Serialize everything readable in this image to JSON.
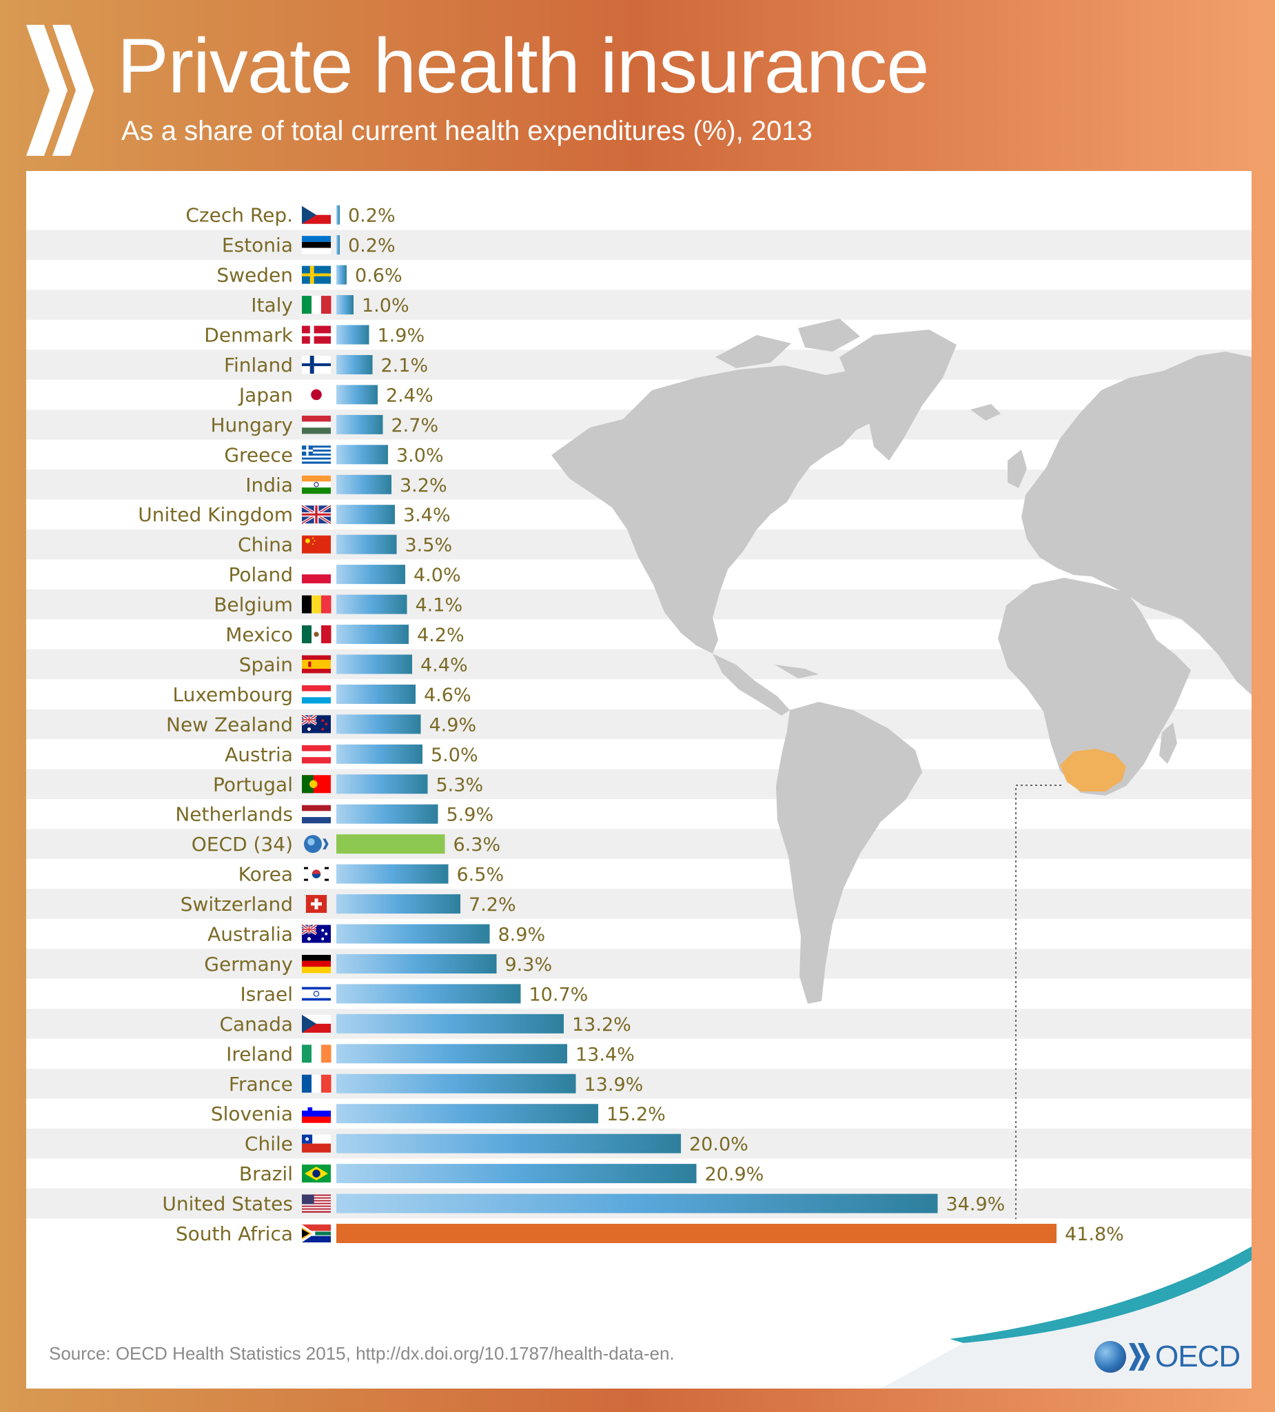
{
  "header": {
    "title": "Private health insurance",
    "subtitle": "As a share of total current health expenditures (%), 2013"
  },
  "footer": {
    "source": "Source: OECD Health Statistics 2015, http://dx.doi.org/10.1787/health-data-en.",
    "logo_text": "OECD"
  },
  "colors": {
    "bar_gradient_start": "#a9d2f0",
    "bar_gradient_mid": "#5aa8dc",
    "bar_gradient_end": "#2d7f9c",
    "oecd_bar": "#8cc850",
    "highlight_bar": "#e06a28",
    "label_text": "#7b6a26",
    "map_land": "#c8c8c8",
    "map_highlight": "#f0b15a",
    "row_stripe": "#efefef"
  },
  "chart_data": {
    "type": "bar",
    "orientation": "horizontal",
    "title": "Private health insurance",
    "subtitle": "As a share of total current health expenditures (%), 2013",
    "categories": [
      "Czech Rep.",
      "Estonia",
      "Sweden",
      "Italy",
      "Denmark",
      "Finland",
      "Japan",
      "Hungary",
      "Greece",
      "India",
      "United Kingdom",
      "China",
      "Poland",
      "Belgium",
      "Mexico",
      "Spain",
      "Luxembourg",
      "New Zealand",
      "Austria",
      "Portugal",
      "Netherlands",
      "OECD (34)",
      "Korea",
      "Switzerland",
      "Australia",
      "Germany",
      "Israel",
      "Canada",
      "Ireland",
      "France",
      "Slovenia",
      "Chile",
      "Brazil",
      "United States",
      "South Africa"
    ],
    "values": [
      0.2,
      0.2,
      0.6,
      1.0,
      1.9,
      2.1,
      2.4,
      2.7,
      3.0,
      3.2,
      3.4,
      3.5,
      4.0,
      4.1,
      4.2,
      4.4,
      4.6,
      4.9,
      5.0,
      5.3,
      5.9,
      6.3,
      6.5,
      7.2,
      8.9,
      9.3,
      10.7,
      13.2,
      13.4,
      13.9,
      15.2,
      20.0,
      20.9,
      34.9,
      41.8
    ],
    "value_labels": [
      "0.2%",
      "0.2%",
      "0.6%",
      "1.0%",
      "1.9%",
      "2.1%",
      "2.4%",
      "2.7%",
      "3.0%",
      "3.2%",
      "3.4%",
      "3.5%",
      "4.0%",
      "4.1%",
      "4.2%",
      "4.4%",
      "4.6%",
      "4.9%",
      "5.0%",
      "5.3%",
      "5.9%",
      "6.3%",
      "6.5%",
      "7.2%",
      "8.9%",
      "9.3%",
      "10.7%",
      "13.2%",
      "13.4%",
      "13.9%",
      "15.2%",
      "20.0%",
      "20.9%",
      "34.9%",
      "41.8%"
    ],
    "flags": [
      "cz",
      "ee",
      "se",
      "it",
      "dk",
      "fi",
      "jp",
      "hu",
      "gr",
      "in",
      "gb",
      "cn",
      "pl",
      "be",
      "mx",
      "es",
      "lu",
      "nz",
      "at",
      "pt",
      "nl",
      "oecd",
      "kr",
      "ch",
      "au",
      "de",
      "il",
      "cz",
      "ie",
      "fr",
      "si",
      "cl",
      "br",
      "us",
      "za"
    ],
    "highlight": {
      "OECD (34)": "oecd",
      "South Africa": "highlight"
    },
    "xlim": [
      0,
      42
    ],
    "grid": false,
    "legend": "none"
  }
}
